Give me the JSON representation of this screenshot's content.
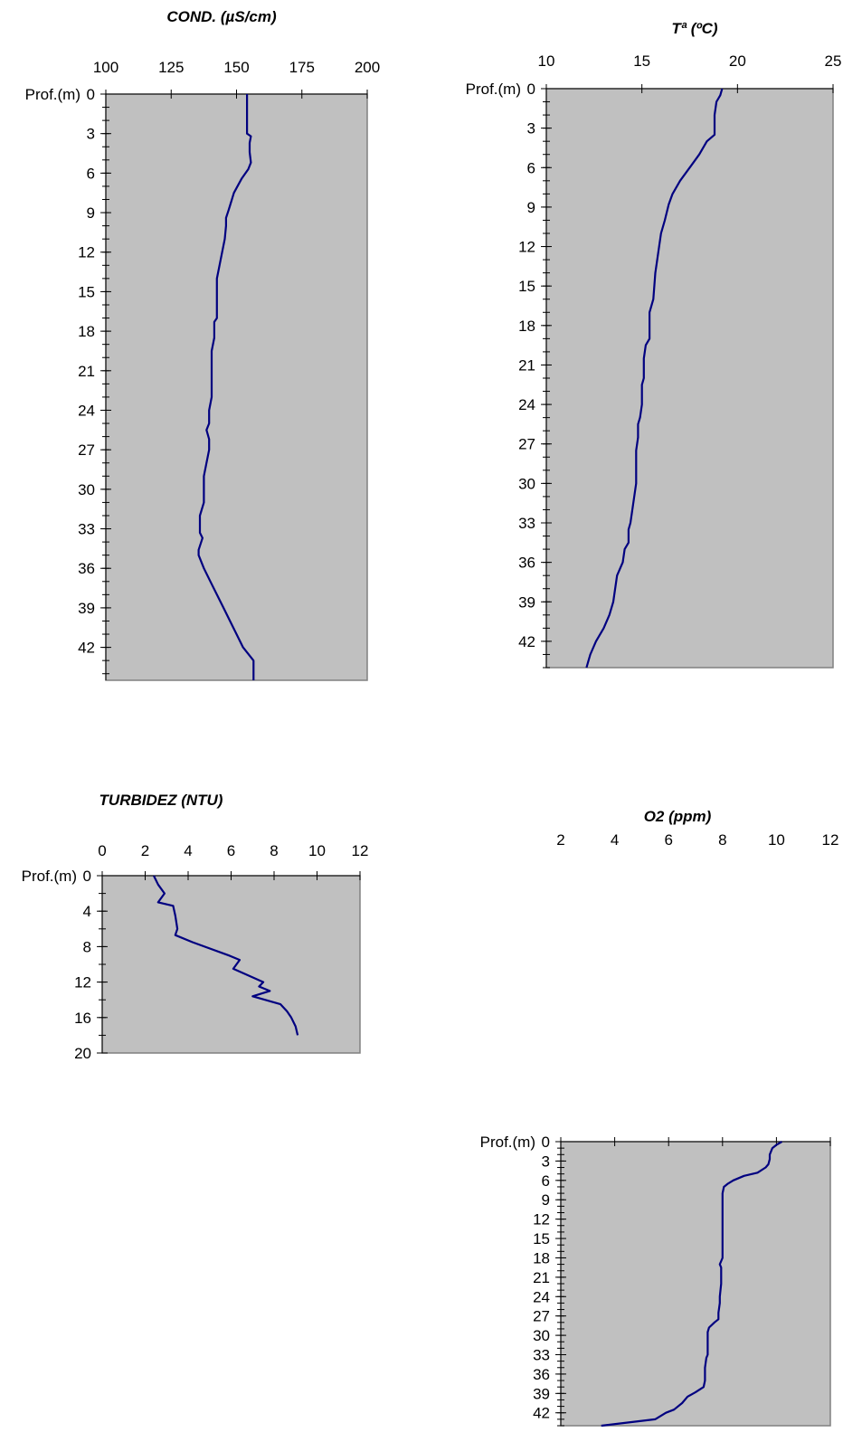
{
  "chart_data": [
    {
      "type": "line",
      "title": "COND. (µS/cm)",
      "y_axis_label": "Prof.(m)",
      "xlim": [
        100,
        200
      ],
      "x_ticks": [
        100,
        125,
        150,
        175,
        200
      ],
      "ylim": [
        0,
        44.5
      ],
      "y_ticks": [
        0,
        3,
        6,
        9,
        12,
        15,
        18,
        21,
        24,
        27,
        30,
        33,
        36,
        39,
        42
      ],
      "y_inverted": true,
      "x_axis_position": "top",
      "grid": false,
      "colors": {
        "plot_bg": "#c0c0c0",
        "line": "#000080"
      },
      "series": [
        {
          "x": [
            154,
            154,
            154,
            154,
            155.5,
            155,
            155,
            155.5,
            154.5,
            152,
            149,
            147,
            146,
            146,
            145.5,
            144.5,
            143.5,
            142.5,
            142.5,
            142.5,
            142.5,
            141.5,
            141.5,
            140.5,
            140.5,
            140.5,
            140.5,
            139.5,
            139.5,
            138.5,
            139.5,
            139.5,
            138.5,
            137.5,
            137.5,
            137.5,
            136,
            136,
            136,
            137,
            135.5,
            135.5,
            137.5,
            140,
            142.5,
            145,
            147.5,
            150,
            152.5,
            156.5,
            156.5,
            156.5
          ],
          "y": [
            0,
            1,
            2,
            3,
            3.2,
            3.7,
            4.4,
            5.2,
            5.7,
            6.4,
            7.5,
            8.8,
            9.4,
            10,
            11,
            12,
            13,
            14,
            15,
            16,
            17,
            17.3,
            18.5,
            19.5,
            20.3,
            21.5,
            23,
            24,
            25,
            25.5,
            26.2,
            27,
            28,
            29,
            30,
            31,
            32,
            33,
            33.3,
            33.7,
            34.6,
            35,
            36,
            37,
            38,
            39,
            40,
            41,
            42,
            43,
            43.5,
            44.5
          ]
        }
      ]
    },
    {
      "type": "line",
      "title": "Tª (ºC)",
      "y_axis_label": "Prof.(m)",
      "xlim": [
        10,
        25
      ],
      "x_ticks": [
        10,
        15,
        20,
        25
      ],
      "ylim": [
        0,
        44
      ],
      "y_ticks": [
        0,
        3,
        6,
        9,
        12,
        15,
        18,
        21,
        24,
        27,
        30,
        33,
        36,
        39,
        42
      ],
      "y_inverted": true,
      "x_axis_position": "top",
      "grid": false,
      "colors": {
        "plot_bg": "#c0c0c0",
        "line": "#000080"
      },
      "series": [
        {
          "x": [
            19.2,
            19.1,
            18.9,
            18.8,
            18.8,
            18.4,
            18,
            17.5,
            17,
            16.6,
            16.4,
            16.2,
            16,
            15.9,
            15.8,
            15.7,
            15.6,
            15.4,
            15.4,
            15.4,
            15.2,
            15.1,
            15.1,
            15,
            15,
            14.9,
            14.8,
            14.8,
            14.7,
            14.7,
            14.7,
            14.6,
            14.5,
            14.4,
            14.3,
            14.3,
            14.1,
            14,
            13.7,
            13.6,
            13.5,
            13.3,
            13,
            12.6,
            12.3,
            12.2,
            12.1
          ],
          "y": [
            0,
            0.5,
            1,
            2,
            3.5,
            4,
            5,
            6,
            7,
            8,
            8.8,
            10,
            11,
            12,
            13,
            14,
            16,
            17,
            18,
            19,
            19.5,
            20.5,
            22,
            22.5,
            24,
            25,
            25.5,
            26.5,
            27.5,
            29,
            30,
            31,
            32,
            33,
            33.5,
            34.5,
            35,
            36,
            37,
            38,
            39,
            40,
            41,
            42,
            43,
            43.5,
            44
          ]
        }
      ]
    },
    {
      "type": "line",
      "title": "TURBIDEZ (NTU)",
      "y_axis_label": "Prof.(m)",
      "xlim": [
        0,
        12
      ],
      "x_ticks": [
        0,
        2,
        4,
        6,
        8,
        10,
        12
      ],
      "ylim": [
        0,
        20
      ],
      "y_ticks": [
        0,
        4,
        8,
        12,
        16,
        20
      ],
      "y_inverted": true,
      "x_axis_position": "top",
      "grid": false,
      "colors": {
        "plot_bg": "#c0c0c0",
        "line": "#000080"
      },
      "series": [
        {
          "x": [
            2.4,
            2.6,
            2.9,
            2.6,
            3.3,
            3.4,
            3.5,
            3.4,
            4.2,
            5.9,
            6.4,
            6.1,
            7.5,
            7.3,
            7.8,
            7.0,
            8.3,
            8.6,
            8.8,
            9.0,
            9.1
          ],
          "y": [
            0,
            1,
            2,
            3,
            3.4,
            4.5,
            6,
            6.7,
            7.5,
            9,
            9.5,
            10.5,
            12,
            12.5,
            13,
            13.6,
            14.5,
            15.3,
            16,
            17,
            18
          ]
        }
      ]
    },
    {
      "type": "line",
      "title": "O2 (ppm)",
      "y_axis_label": "Prof.(m)",
      "xlim": [
        2,
        12
      ],
      "x_ticks": [
        2,
        4,
        6,
        8,
        10,
        12
      ],
      "ylim": [
        0,
        44
      ],
      "y_ticks": [
        0,
        3,
        6,
        9,
        12,
        15,
        18,
        21,
        24,
        27,
        30,
        33,
        36,
        39,
        42
      ],
      "y_inverted": true,
      "x_axis_position": "top",
      "grid": false,
      "colors": {
        "plot_bg": "#c0c0c0",
        "line": "#000080"
      },
      "series": [
        {
          "x": [
            10.2,
            10.0,
            9.85,
            9.75,
            9.75,
            9.7,
            9.6,
            9.3,
            8.8,
            8.4,
            8.2,
            8.05,
            8.0,
            8.0,
            8.0,
            8.0,
            8.0,
            8.0,
            8.0,
            7.9,
            7.95,
            7.95,
            7.95,
            7.9,
            7.9,
            7.85,
            7.85,
            7.7,
            7.5,
            7.45,
            7.45,
            7.45,
            7.45,
            7.4,
            7.35,
            7.35,
            7.3,
            7.0,
            6.7,
            6.5,
            6.2,
            5.9,
            5.5,
            3.5
          ],
          "y": [
            0,
            0.5,
            1,
            2,
            2.7,
            3.5,
            4,
            4.8,
            5.3,
            6,
            6.5,
            7,
            8,
            9,
            10,
            12,
            15,
            17,
            18,
            19,
            19.5,
            20,
            22,
            24,
            25,
            26.5,
            27.5,
            28,
            28.8,
            29.5,
            31,
            32,
            33,
            33.5,
            35,
            37,
            38,
            38.8,
            39.5,
            40.5,
            41.5,
            42,
            43,
            44
          ]
        }
      ]
    }
  ]
}
